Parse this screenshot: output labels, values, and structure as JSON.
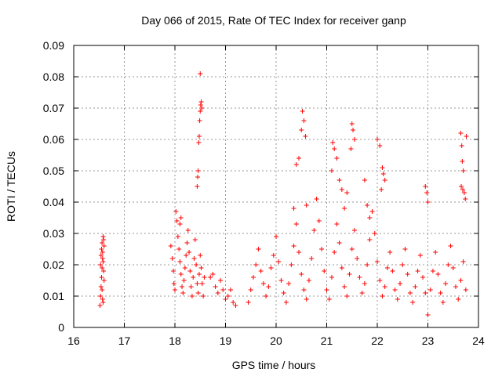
{
  "chart_data": {
    "type": "scatter",
    "title": "Day 066 of 2015, Rate Of TEC Index for receiver ganp",
    "xlabel": "GPS time / hours",
    "ylabel": "ROTI / TECUs",
    "xlim": [
      16,
      24
    ],
    "ylim": [
      0,
      0.09
    ],
    "xticks": [
      16,
      17,
      18,
      19,
      20,
      21,
      22,
      23,
      24
    ],
    "yticks": [
      0,
      0.01,
      0.02,
      0.03,
      0.04,
      0.05,
      0.06,
      0.07,
      0.08,
      0.09
    ],
    "xtick_labels": [
      "16",
      "17",
      "18",
      "19",
      "20",
      "21",
      "22",
      "23",
      "24"
    ],
    "ytick_labels": [
      "0",
      "0.01",
      "0.02",
      "0.03",
      "0.04",
      "0.05",
      "0.06",
      "0.07",
      "0.08",
      "0.09"
    ],
    "grid": true,
    "marker": "+",
    "color": "#ff0000",
    "series": [
      {
        "name": "ROTI",
        "points": [
          [
            16.52,
            0.007
          ],
          [
            16.53,
            0.01
          ],
          [
            16.54,
            0.013
          ],
          [
            16.55,
            0.016
          ],
          [
            16.56,
            0.019
          ],
          [
            16.57,
            0.022
          ],
          [
            16.55,
            0.025
          ],
          [
            16.56,
            0.027
          ],
          [
            16.58,
            0.029
          ],
          [
            16.59,
            0.028
          ],
          [
            16.6,
            0.026
          ],
          [
            16.57,
            0.024
          ],
          [
            16.58,
            0.021
          ],
          [
            16.59,
            0.018
          ],
          [
            16.6,
            0.015
          ],
          [
            16.56,
            0.012
          ],
          [
            16.57,
            0.009
          ],
          [
            16.58,
            0.008
          ],
          [
            16.53,
            0.02
          ],
          [
            16.54,
            0.023
          ],
          [
            17.92,
            0.026
          ],
          [
            17.95,
            0.022
          ],
          [
            17.97,
            0.018
          ],
          [
            17.98,
            0.014
          ],
          [
            18.0,
            0.012
          ],
          [
            18.02,
            0.037
          ],
          [
            18.04,
            0.034
          ],
          [
            18.06,
            0.029
          ],
          [
            18.08,
            0.025
          ],
          [
            18.1,
            0.021
          ],
          [
            18.12,
            0.017
          ],
          [
            18.14,
            0.013
          ],
          [
            18.16,
            0.011
          ],
          [
            18.18,
            0.015
          ],
          [
            18.2,
            0.019
          ],
          [
            18.22,
            0.023
          ],
          [
            18.24,
            0.027
          ],
          [
            18.26,
            0.031
          ],
          [
            18.28,
            0.024
          ],
          [
            18.3,
            0.018
          ],
          [
            18.32,
            0.013
          ],
          [
            18.34,
            0.01
          ],
          [
            18.36,
            0.016
          ],
          [
            18.38,
            0.022
          ],
          [
            18.4,
            0.028
          ],
          [
            18.42,
            0.02
          ],
          [
            18.44,
            0.014
          ],
          [
            18.46,
            0.011
          ],
          [
            18.48,
            0.017
          ],
          [
            18.5,
            0.023
          ],
          [
            18.52,
            0.019
          ],
          [
            18.54,
            0.014
          ],
          [
            18.56,
            0.01
          ],
          [
            18.58,
            0.016
          ],
          [
            18.1,
            0.033
          ],
          [
            18.12,
            0.035
          ],
          [
            18.44,
            0.045
          ],
          [
            18.45,
            0.048
          ],
          [
            18.46,
            0.05
          ],
          [
            18.47,
            0.059
          ],
          [
            18.48,
            0.061
          ],
          [
            18.49,
            0.066
          ],
          [
            18.5,
            0.069
          ],
          [
            18.51,
            0.071
          ],
          [
            18.52,
            0.072
          ],
          [
            18.53,
            0.07
          ],
          [
            18.5,
            0.081
          ],
          [
            18.7,
            0.016
          ],
          [
            18.75,
            0.017
          ],
          [
            18.8,
            0.013
          ],
          [
            18.85,
            0.011
          ],
          [
            18.9,
            0.015
          ],
          [
            18.95,
            0.012
          ],
          [
            19.0,
            0.009
          ],
          [
            19.05,
            0.01
          ],
          [
            19.1,
            0.012
          ],
          [
            19.15,
            0.008
          ],
          [
            19.2,
            0.007
          ],
          [
            19.45,
            0.008
          ],
          [
            19.5,
            0.012
          ],
          [
            19.55,
            0.016
          ],
          [
            19.6,
            0.02
          ],
          [
            19.65,
            0.025
          ],
          [
            19.7,
            0.018
          ],
          [
            19.75,
            0.014
          ],
          [
            19.8,
            0.01
          ],
          [
            19.85,
            0.013
          ],
          [
            19.9,
            0.019
          ],
          [
            19.95,
            0.023
          ],
          [
            20.0,
            0.029
          ],
          [
            20.05,
            0.021
          ],
          [
            20.1,
            0.015
          ],
          [
            20.15,
            0.011
          ],
          [
            20.2,
            0.008
          ],
          [
            20.25,
            0.014
          ],
          [
            20.3,
            0.02
          ],
          [
            20.35,
            0.026
          ],
          [
            20.4,
            0.033
          ],
          [
            20.45,
            0.024
          ],
          [
            20.5,
            0.017
          ],
          [
            20.55,
            0.012
          ],
          [
            20.6,
            0.009
          ],
          [
            20.65,
            0.015
          ],
          [
            20.7,
            0.022
          ],
          [
            20.75,
            0.031
          ],
          [
            20.8,
            0.041
          ],
          [
            20.85,
            0.034
          ],
          [
            20.9,
            0.025
          ],
          [
            20.95,
            0.018
          ],
          [
            21.0,
            0.012
          ],
          [
            21.05,
            0.009
          ],
          [
            21.1,
            0.016
          ],
          [
            21.15,
            0.024
          ],
          [
            21.2,
            0.033
          ],
          [
            21.25,
            0.027
          ],
          [
            21.3,
            0.019
          ],
          [
            21.35,
            0.013
          ],
          [
            21.4,
            0.01
          ],
          [
            21.45,
            0.017
          ],
          [
            21.5,
            0.025
          ],
          [
            21.55,
            0.031
          ],
          [
            21.6,
            0.022
          ],
          [
            21.65,
            0.016
          ],
          [
            21.7,
            0.011
          ],
          [
            21.75,
            0.014
          ],
          [
            21.8,
            0.02
          ],
          [
            21.85,
            0.028
          ],
          [
            21.9,
            0.037
          ],
          [
            21.95,
            0.03
          ],
          [
            22.0,
            0.021
          ],
          [
            22.05,
            0.015
          ],
          [
            22.1,
            0.01
          ],
          [
            22.15,
            0.013
          ],
          [
            22.2,
            0.019
          ],
          [
            22.25,
            0.024
          ],
          [
            22.3,
            0.018
          ],
          [
            22.35,
            0.012
          ],
          [
            22.4,
            0.009
          ],
          [
            22.45,
            0.014
          ],
          [
            22.5,
            0.02
          ],
          [
            22.55,
            0.025
          ],
          [
            22.6,
            0.017
          ],
          [
            22.65,
            0.011
          ],
          [
            22.7,
            0.008
          ],
          [
            22.75,
            0.013
          ],
          [
            22.8,
            0.018
          ],
          [
            22.85,
            0.023
          ],
          [
            22.9,
            0.016
          ],
          [
            22.95,
            0.011
          ],
          [
            23.0,
            0.004
          ],
          [
            23.05,
            0.012
          ],
          [
            23.1,
            0.018
          ],
          [
            23.15,
            0.024
          ],
          [
            23.2,
            0.017
          ],
          [
            23.25,
            0.011
          ],
          [
            23.3,
            0.008
          ],
          [
            23.35,
            0.014
          ],
          [
            23.4,
            0.02
          ],
          [
            23.45,
            0.026
          ],
          [
            23.5,
            0.019
          ],
          [
            23.55,
            0.013
          ],
          [
            23.6,
            0.009
          ],
          [
            23.65,
            0.015
          ],
          [
            23.7,
            0.021
          ],
          [
            23.75,
            0.012
          ],
          [
            20.4,
            0.052
          ],
          [
            20.45,
            0.054
          ],
          [
            20.5,
            0.063
          ],
          [
            20.52,
            0.069
          ],
          [
            20.55,
            0.066
          ],
          [
            20.58,
            0.061
          ],
          [
            20.35,
            0.038
          ],
          [
            20.6,
            0.039
          ],
          [
            21.1,
            0.05
          ],
          [
            21.12,
            0.059
          ],
          [
            21.15,
            0.057
          ],
          [
            21.2,
            0.054
          ],
          [
            21.25,
            0.047
          ],
          [
            21.3,
            0.044
          ],
          [
            21.35,
            0.038
          ],
          [
            21.4,
            0.043
          ],
          [
            21.5,
            0.065
          ],
          [
            21.52,
            0.063
          ],
          [
            21.55,
            0.06
          ],
          [
            21.48,
            0.057
          ],
          [
            21.75,
            0.047
          ],
          [
            21.8,
            0.039
          ],
          [
            21.85,
            0.035
          ],
          [
            22.0,
            0.06
          ],
          [
            22.05,
            0.058
          ],
          [
            22.1,
            0.051
          ],
          [
            22.12,
            0.049
          ],
          [
            22.15,
            0.047
          ],
          [
            22.08,
            0.044
          ],
          [
            22.95,
            0.045
          ],
          [
            22.98,
            0.043
          ],
          [
            23.0,
            0.04
          ],
          [
            23.65,
            0.062
          ],
          [
            23.67,
            0.058
          ],
          [
            23.68,
            0.053
          ],
          [
            23.7,
            0.05
          ],
          [
            23.66,
            0.045
          ],
          [
            23.69,
            0.044
          ],
          [
            23.72,
            0.043
          ],
          [
            23.74,
            0.041
          ],
          [
            23.76,
            0.061
          ]
        ]
      }
    ]
  }
}
